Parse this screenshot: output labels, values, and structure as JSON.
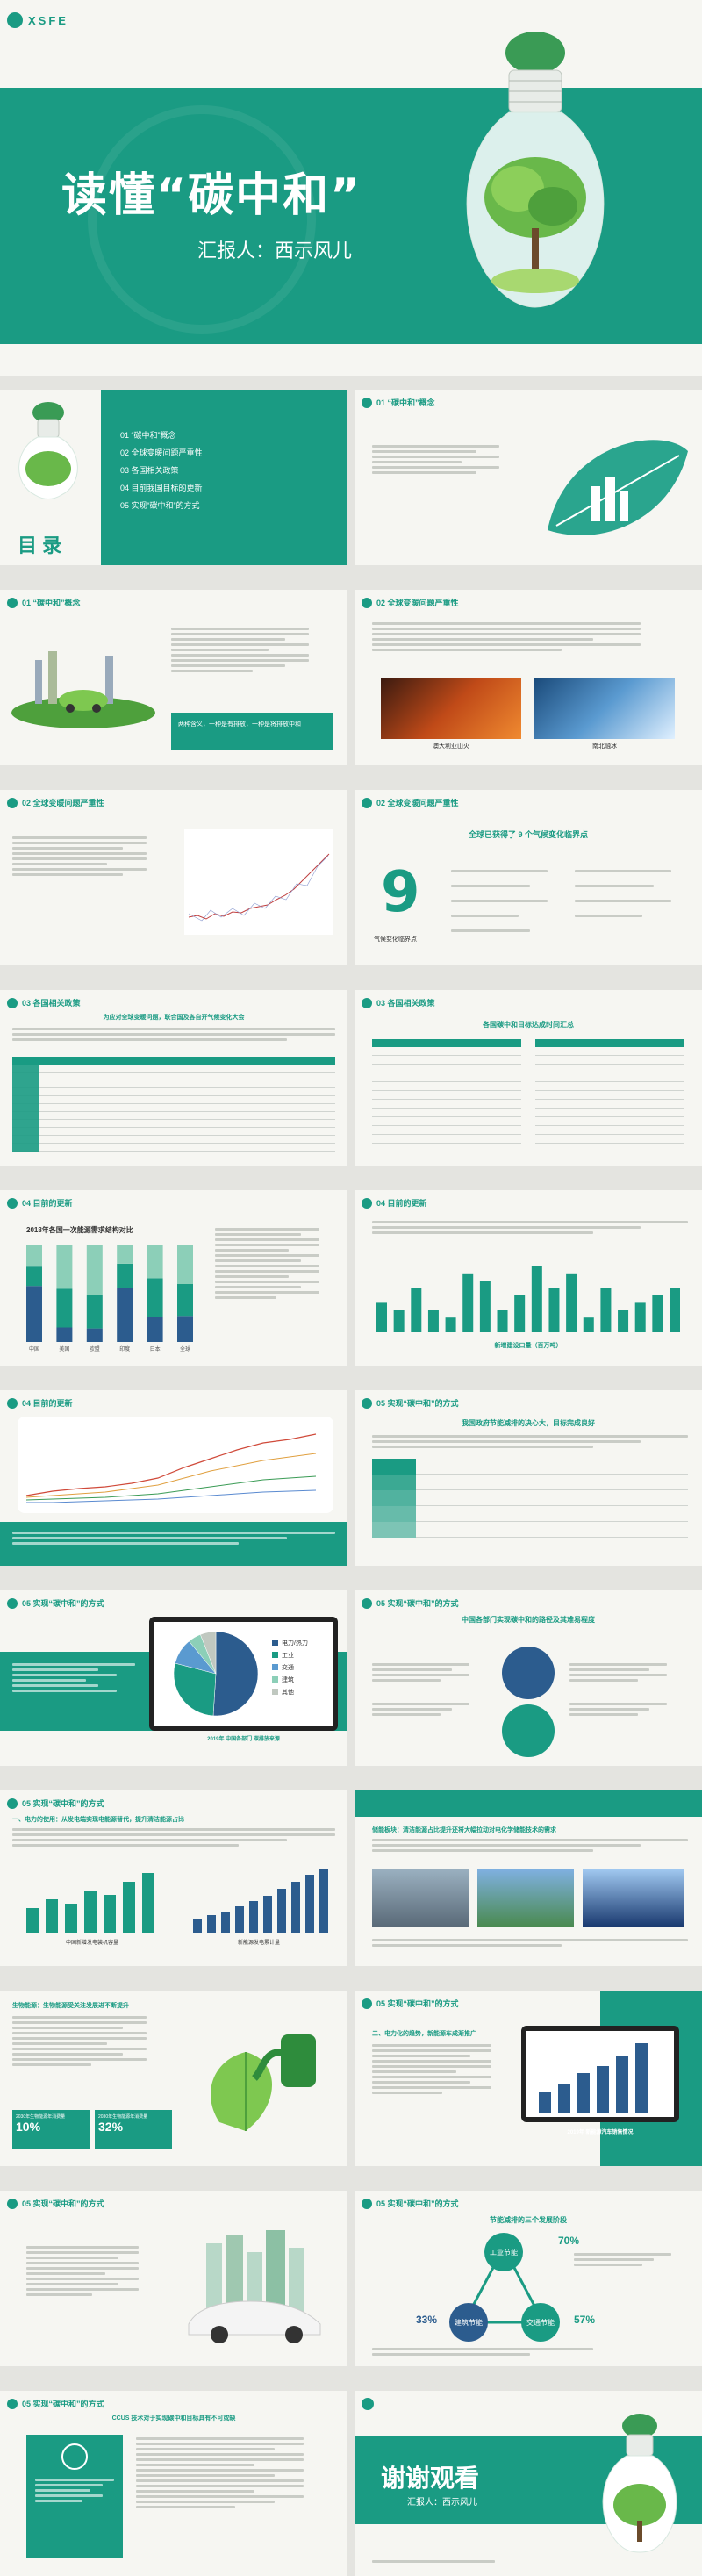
{
  "brand": "XSFE",
  "cover": {
    "title": "读懂“碳中和”",
    "reporter": "汇报人：西示风儿"
  },
  "toc": {
    "title": "目 录",
    "items": [
      "01 “碳中和”概念",
      "02 全球变暖问题严重性",
      "03 各国相关政策",
      "04 目前我国目标的更新",
      "05 实现“碳中和”的方式"
    ]
  },
  "sections": {
    "s01": "01 “碳中和”概念",
    "s02": "02 全球变暖问题严重性",
    "s03": "03 各国相关政策",
    "s04": "04 目前的更新",
    "s05": "05 实现“碳中和”的方式"
  },
  "concept": {
    "highlight": "两种含义，一种是有排放，一种是将排放中和",
    "photo_labels": [
      "澳大利亚山火",
      "南北融冰"
    ]
  },
  "severity": {
    "subtitle": "全球已获得了 9 个气候变化临界点",
    "nine": "9",
    "nine_label": "气候变化临界点"
  },
  "policy": {
    "slide1_title": "为应对全球变暖问题，联合国及各自开气候变化大会",
    "slide2_title": "各国碳中和目标达成时间汇总"
  },
  "updates": {
    "chart1_title": "2018年各国一次能源需求结构对比",
    "chart2_caption": "新增建设口量（百万吨）",
    "slide4_title": "我国政府节能减排的决心大，目标完成良好"
  },
  "methods": {
    "pie_caption": "2019年 中国各部门 碳排放来源",
    "slide2_title": "中国各部门实现碳中和的路径及其难易程度",
    "power_title": "一、电力的使用：从发电端实现电能源替代，提升清洁能源占比",
    "power_caption1": "中国新增发电装机容量",
    "power_caption2": "新能源发电累计量",
    "storage_title": "储能板块：清洁能源占比提升还将大幅拉动对电化学储能技术的需求",
    "bio_title": "生物能源：生物能源受关注发展进不断提升",
    "bio_stat1_label": "2030年生物能源年消费量",
    "bio_stat1_value": "10%",
    "bio_stat2_label": "2030年生物能源年消费量",
    "bio_stat2_value": "32%",
    "ev_title": "二、电力化的趋势，新能源车成渐推广",
    "ev_caption": "2019年 新能源汽车销售情况",
    "three_title": "节能减排的三个发展阶段",
    "three_nodes": [
      "工业节能",
      "建筑节能",
      "交通节能"
    ],
    "three_pcts": [
      "70%",
      "33%",
      "57%"
    ],
    "last_title": "CCUS 技术对于实现碳中和目标具有不可或缺"
  },
  "thanks": {
    "title": "谢谢观看",
    "reporter": "汇报人：西示风儿"
  },
  "chart_data": [
    {
      "type": "bar",
      "title": "2018年各国一次能源需求结构对比",
      "categories": [
        "中国",
        "美国",
        "欧盟",
        "印度",
        "日本",
        "全球"
      ],
      "series": [
        {
          "values": [
            58,
            15,
            14,
            56,
            26,
            27
          ]
        },
        {
          "values": [
            20,
            40,
            35,
            25,
            40,
            33
          ]
        },
        {
          "values": [
            22,
            45,
            51,
            19,
            34,
            40
          ]
        }
      ],
      "ylim": [
        0,
        100
      ]
    },
    {
      "type": "bar",
      "title": "新增建设口量（百万吨）",
      "categories": [
        "1",
        "2",
        "3",
        "4",
        "5",
        "6",
        "7",
        "8",
        "9",
        "10",
        "11",
        "12",
        "13",
        "14",
        "15",
        "16",
        "17",
        "18"
      ],
      "values": [
        4,
        3,
        6,
        3,
        2,
        8,
        7,
        3,
        5,
        9,
        6,
        8,
        2,
        6,
        3,
        4,
        5,
        6
      ],
      "ylim": [
        0,
        10
      ]
    },
    {
      "type": "pie",
      "title": "2019年 中国各部门 碳排放来源",
      "categories": [
        "电力/热力",
        "工业",
        "交通",
        "建筑",
        "其他"
      ],
      "values": [
        51,
        28,
        10,
        5,
        6
      ]
    }
  ]
}
